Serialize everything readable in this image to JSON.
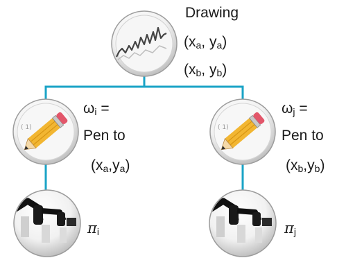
{
  "root": {
    "title": "Drawing",
    "coord_a": {
      "x": "x",
      "x_sub": "a",
      "y": "y",
      "y_sub": "a"
    },
    "coord_b": {
      "x": "x",
      "x_sub": "b",
      "y": "y",
      "y_sub": "b"
    }
  },
  "left_node": {
    "omega": "ω",
    "omega_sub": "i",
    "equals": "=",
    "action": "Pen to",
    "target": {
      "x": "x",
      "x_sub": "a",
      "y": "y",
      "y_sub": "a"
    },
    "policy": {
      "symbol": "π",
      "sub": "i"
    }
  },
  "right_node": {
    "omega": "ω",
    "omega_sub": "j",
    "equals": "=",
    "action": "Pen to",
    "target": {
      "x": "x",
      "x_sub": "b",
      "y": "y",
      "y_sub": "b"
    },
    "policy": {
      "symbol": "π",
      "sub": "j"
    }
  },
  "icons": {
    "root": "drawing-thumbnail-icon",
    "options": "pencil-icon",
    "policies": "robot-arm-icon"
  },
  "colors": {
    "connector": "#1aa3c6",
    "pencil_body": "#f2b632",
    "pencil_eraser": "#e2566a",
    "sketch_line": "#444444"
  }
}
